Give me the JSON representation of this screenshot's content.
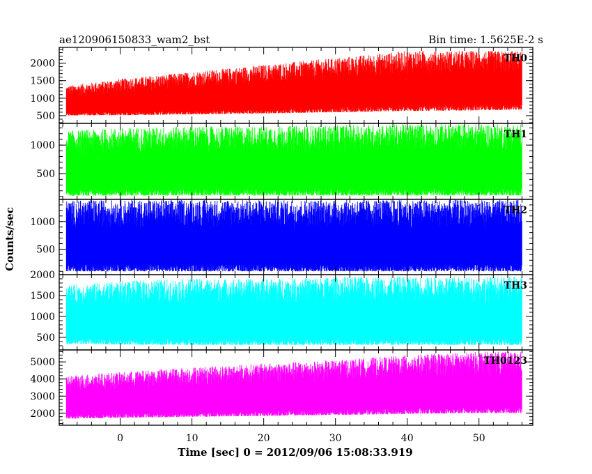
{
  "chart_data": {
    "type": "line",
    "title": "ae120906150833_wam2_bst",
    "subtitle": "Bin time: 1.5625E-2 s",
    "xlabel": "Time [sec] 0 = 2012/09/06 15:08:33.919",
    "ylabel": "Counts/sec",
    "xlim": [
      -8.5,
      57.5
    ],
    "x_ticks": [
      0,
      10,
      20,
      30,
      40,
      50
    ],
    "x_minor_step": 2,
    "x_range_data": [
      -7.5,
      56
    ],
    "grid": false,
    "panels": [
      {
        "name": "TH0",
        "color": "#ff0000",
        "ylim": [
          280,
          2450
        ],
        "y_ticks": [
          500,
          1000,
          1500,
          2000
        ],
        "y_minor_step": 100,
        "series": {
          "x": [
            -7.5,
            0,
            10,
            20,
            30,
            40,
            50,
            56
          ],
          "upper": [
            1350,
            1550,
            1750,
            1950,
            2150,
            2350,
            2350,
            2350
          ],
          "lower": [
            480,
            480,
            500,
            520,
            550,
            580,
            600,
            620
          ]
        }
      },
      {
        "name": "TH1",
        "color": "#00ff00",
        "ylim": [
          50,
          1380
        ],
        "y_ticks": [
          500,
          1000
        ],
        "y_minor_step": 100,
        "series": {
          "x": [
            -7.5,
            0,
            10,
            20,
            30,
            40,
            50,
            56
          ],
          "upper": [
            1250,
            1300,
            1330,
            1330,
            1350,
            1370,
            1370,
            1370
          ],
          "lower": [
            80,
            80,
            80,
            80,
            80,
            80,
            80,
            80
          ]
        }
      },
      {
        "name": "TH2",
        "color": "#0000ff",
        "ylim": [
          40,
          1400
        ],
        "y_ticks": [
          500,
          1000
        ],
        "y_minor_step": 100,
        "series": {
          "x": [
            -7.5,
            0,
            10,
            20,
            30,
            40,
            50,
            56
          ],
          "upper": [
            1380,
            1390,
            1390,
            1390,
            1390,
            1390,
            1390,
            1390
          ],
          "lower": [
            60,
            60,
            60,
            60,
            60,
            60,
            60,
            60
          ]
        }
      },
      {
        "name": "TH3",
        "color": "#00ffff",
        "ylim": [
          200,
          2000
        ],
        "y_ticks": [
          500,
          1000,
          1500,
          2000
        ],
        "y_minor_step": 100,
        "series": {
          "x": [
            -7.5,
            0,
            10,
            20,
            30,
            40,
            50,
            56
          ],
          "upper": [
            1750,
            1850,
            1900,
            1900,
            1950,
            1950,
            1950,
            1950
          ],
          "lower": [
            300,
            280,
            270,
            270,
            270,
            270,
            270,
            270
          ]
        }
      },
      {
        "name": "TH0123",
        "color": "#ff00ff",
        "ylim": [
          1300,
          5700
        ],
        "y_ticks": [
          2000,
          3000,
          4000,
          5000
        ],
        "y_minor_step": 200,
        "series": {
          "x": [
            -7.5,
            0,
            10,
            20,
            30,
            40,
            50,
            56
          ],
          "upper": [
            4200,
            4400,
            4700,
            4900,
            5100,
            5400,
            5600,
            5600
          ],
          "lower": [
            1600,
            1650,
            1700,
            1750,
            1800,
            1850,
            1900,
            1900
          ]
        }
      }
    ]
  }
}
